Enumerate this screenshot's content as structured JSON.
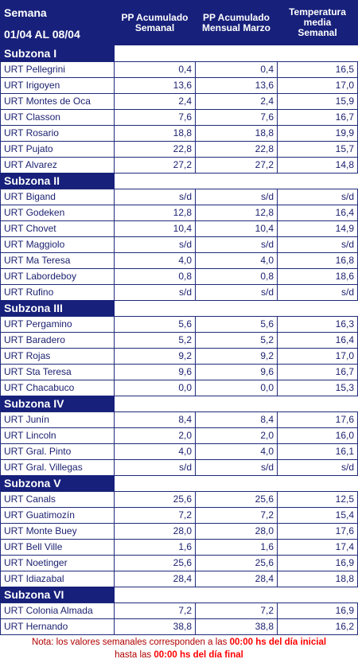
{
  "header": {
    "week_label": "Semana",
    "week_range": "01/04 AL 08/04",
    "columns": [
      [
        "PP Acumulado",
        "Semanal"
      ],
      [
        "PP Acumulado",
        "Mensual Marzo"
      ],
      [
        "Temperatura",
        "media",
        "Semanal"
      ]
    ]
  },
  "sections": [
    {
      "title": "Subzona I",
      "rows": [
        [
          "URT Pellegrini",
          "0,4",
          "0,4",
          "16,5"
        ],
        [
          "URT Irigoyen",
          "13,6",
          "13,6",
          "17,0"
        ],
        [
          "URT Montes de Oca",
          "2,4",
          "2,4",
          "15,9"
        ],
        [
          "URT Classon",
          "7,6",
          "7,6",
          "16,7"
        ],
        [
          "URT Rosario",
          "18,8",
          "18,8",
          "19,9"
        ],
        [
          "URT Pujato",
          "22,8",
          "22,8",
          "15,7"
        ],
        [
          "URT Alvarez",
          "27,2",
          "27,2",
          "14,8"
        ]
      ]
    },
    {
      "title": "Subzona II",
      "rows": [
        [
          "URT Bigand",
          "s/d",
          "s/d",
          "s/d"
        ],
        [
          "URT Godeken",
          "12,8",
          "12,8",
          "16,4"
        ],
        [
          "URT Chovet",
          "10,4",
          "10,4",
          "14,9"
        ],
        [
          "URT Maggiolo",
          "s/d",
          "s/d",
          "s/d"
        ],
        [
          "URT Ma Teresa",
          "4,0",
          "4,0",
          "16,8"
        ],
        [
          "URT Labordeboy",
          "0,8",
          "0,8",
          "18,6"
        ],
        [
          "URT Rufino",
          "s/d",
          "s/d",
          "s/d"
        ]
      ]
    },
    {
      "title": "Subzona III",
      "rows": [
        [
          "URT Pergamino",
          "5,6",
          "5,6",
          "16,3"
        ],
        [
          "URT Baradero",
          "5,2",
          "5,2",
          "16,4"
        ],
        [
          "URT Rojas",
          "9,2",
          "9,2",
          "17,0"
        ],
        [
          "URT Sta Teresa",
          "9,6",
          "9,6",
          "16,7"
        ],
        [
          "URT Chacabuco",
          "0,0",
          "0,0",
          "15,3"
        ]
      ]
    },
    {
      "title": "Subzona IV",
      "rows": [
        [
          "URT Junín",
          "8,4",
          "8,4",
          "17,6"
        ],
        [
          "URT Lincoln",
          "2,0",
          "2,0",
          "16,0"
        ],
        [
          "URT Gral. Pinto",
          "4,0",
          "4,0",
          "16,1"
        ],
        [
          "URT Gral. Villegas",
          "s/d",
          "s/d",
          "s/d"
        ]
      ]
    },
    {
      "title": "Subzona V",
      "rows": [
        [
          "URT Canals",
          "25,6",
          "25,6",
          "12,5"
        ],
        [
          "URT Guatimozín",
          "7,2",
          "7,2",
          "15,4"
        ],
        [
          "URT Monte Buey",
          "28,0",
          "28,0",
          "17,6"
        ],
        [
          "URT Bell Ville",
          "1,6",
          "1,6",
          "17,4"
        ],
        [
          "URT Noetinger",
          "25,6",
          "25,6",
          "16,9"
        ],
        [
          "URT Idiazabal",
          "28,4",
          "28,4",
          "18,8"
        ]
      ]
    },
    {
      "title": "Subzona VI",
      "rows": [
        [
          "URT Colonia Almada",
          "7,2",
          "7,2",
          "16,9"
        ],
        [
          "URT Hernando",
          "38,8",
          "38,8",
          "16,2"
        ]
      ]
    }
  ],
  "note": {
    "line1": [
      "Nota: los valores semanales corresponden a las ",
      "00:00 hs del día inicial"
    ],
    "line2": [
      "hasta las ",
      "00:00 hs del día final"
    ]
  }
}
